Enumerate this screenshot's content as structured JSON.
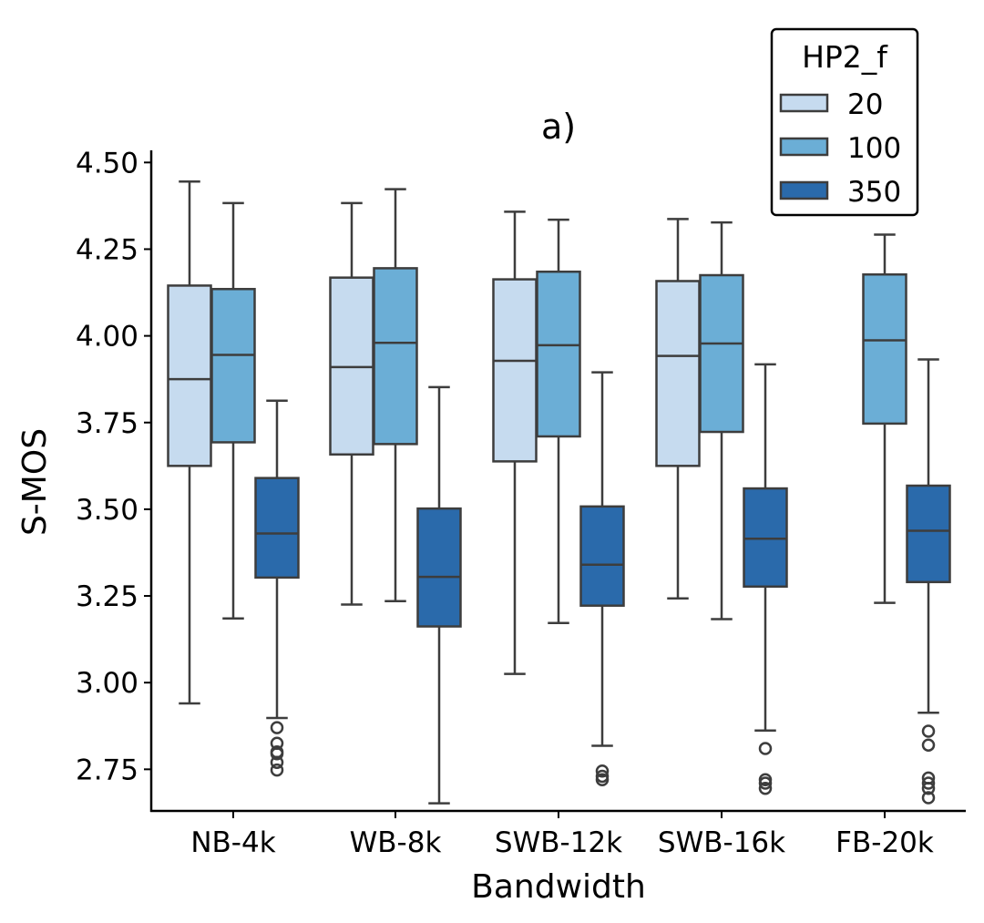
{
  "chart_data": {
    "type": "box",
    "title": "a)",
    "xlabel": "Bandwidth",
    "ylabel": "S-MOS",
    "ylim": [
      2.63,
      4.535
    ],
    "yticks": [
      2.75,
      3.0,
      3.25,
      3.5,
      3.75,
      4.0,
      4.25,
      4.5
    ],
    "ytick_labels": [
      "2.75",
      "3.00",
      "3.25",
      "3.50",
      "3.75",
      "4.00",
      "4.25",
      "4.50"
    ],
    "categories": [
      "NB-4k",
      "WB-8k",
      "SWB-12k",
      "SWB-16k",
      "FB-20k"
    ],
    "legend": {
      "title": "HP2_f",
      "position": "top-right",
      "entries": [
        "20",
        "100",
        "350"
      ]
    },
    "colors": {
      "20": "#c6dbef",
      "100": "#6baed6",
      "350": "#2a6aab",
      "edge": "#3d3d3d"
    },
    "series": [
      {
        "name": "20",
        "boxes": [
          {
            "category": "NB-4k",
            "whislo": 2.94,
            "q1": 3.625,
            "med": 3.875,
            "q3": 4.145,
            "whishi": 4.445,
            "fliers": []
          },
          {
            "category": "WB-8k",
            "whislo": 3.225,
            "q1": 3.658,
            "med": 3.91,
            "q3": 4.168,
            "whishi": 4.383,
            "fliers": []
          },
          {
            "category": "SWB-12k",
            "whislo": 3.025,
            "q1": 3.638,
            "med": 3.928,
            "q3": 4.163,
            "whishi": 4.358,
            "fliers": []
          },
          {
            "category": "SWB-16k",
            "whislo": 3.243,
            "q1": 3.625,
            "med": 3.942,
            "q3": 4.158,
            "whishi": 4.337,
            "fliers": []
          }
        ]
      },
      {
        "name": "100",
        "boxes": [
          {
            "category": "NB-4k",
            "whislo": 3.185,
            "q1": 3.693,
            "med": 3.945,
            "q3": 4.135,
            "whishi": 4.383,
            "fliers": []
          },
          {
            "category": "WB-8k",
            "whislo": 3.235,
            "q1": 3.688,
            "med": 3.98,
            "q3": 4.195,
            "whishi": 4.423,
            "fliers": []
          },
          {
            "category": "SWB-12k",
            "whislo": 3.172,
            "q1": 3.71,
            "med": 3.973,
            "q3": 4.185,
            "whishi": 4.335,
            "fliers": []
          },
          {
            "category": "SWB-16k",
            "whislo": 3.183,
            "q1": 3.723,
            "med": 3.978,
            "q3": 4.175,
            "whishi": 4.327,
            "fliers": []
          },
          {
            "category": "FB-20k",
            "whislo": 3.23,
            "q1": 3.747,
            "med": 3.987,
            "q3": 4.177,
            "whishi": 4.292,
            "fliers": []
          }
        ]
      },
      {
        "name": "350",
        "boxes": [
          {
            "category": "NB-4k",
            "whislo": 2.898,
            "q1": 3.303,
            "med": 3.43,
            "q3": 3.59,
            "whishi": 3.813,
            "fliers": [
              2.87,
              2.825,
              2.8,
              2.795,
              2.77,
              2.748
            ]
          },
          {
            "category": "WB-8k",
            "whislo": 2.652,
            "q1": 3.162,
            "med": 3.305,
            "q3": 3.502,
            "whishi": 3.852,
            "fliers": []
          },
          {
            "category": "SWB-12k",
            "whislo": 2.818,
            "q1": 3.222,
            "med": 3.34,
            "q3": 3.508,
            "whishi": 3.895,
            "fliers": [
              2.745,
              2.73,
              2.72
            ]
          },
          {
            "category": "SWB-16k",
            "whislo": 2.862,
            "q1": 3.277,
            "med": 3.415,
            "q3": 3.56,
            "whishi": 3.918,
            "fliers": [
              2.81,
              2.72,
              2.71,
              2.695
            ]
          },
          {
            "category": "FB-20k",
            "whislo": 2.913,
            "q1": 3.29,
            "med": 3.438,
            "q3": 3.568,
            "whishi": 3.932,
            "fliers": [
              2.86,
              2.82,
              2.725,
              2.71,
              2.695,
              2.668
            ]
          }
        ]
      }
    ]
  }
}
